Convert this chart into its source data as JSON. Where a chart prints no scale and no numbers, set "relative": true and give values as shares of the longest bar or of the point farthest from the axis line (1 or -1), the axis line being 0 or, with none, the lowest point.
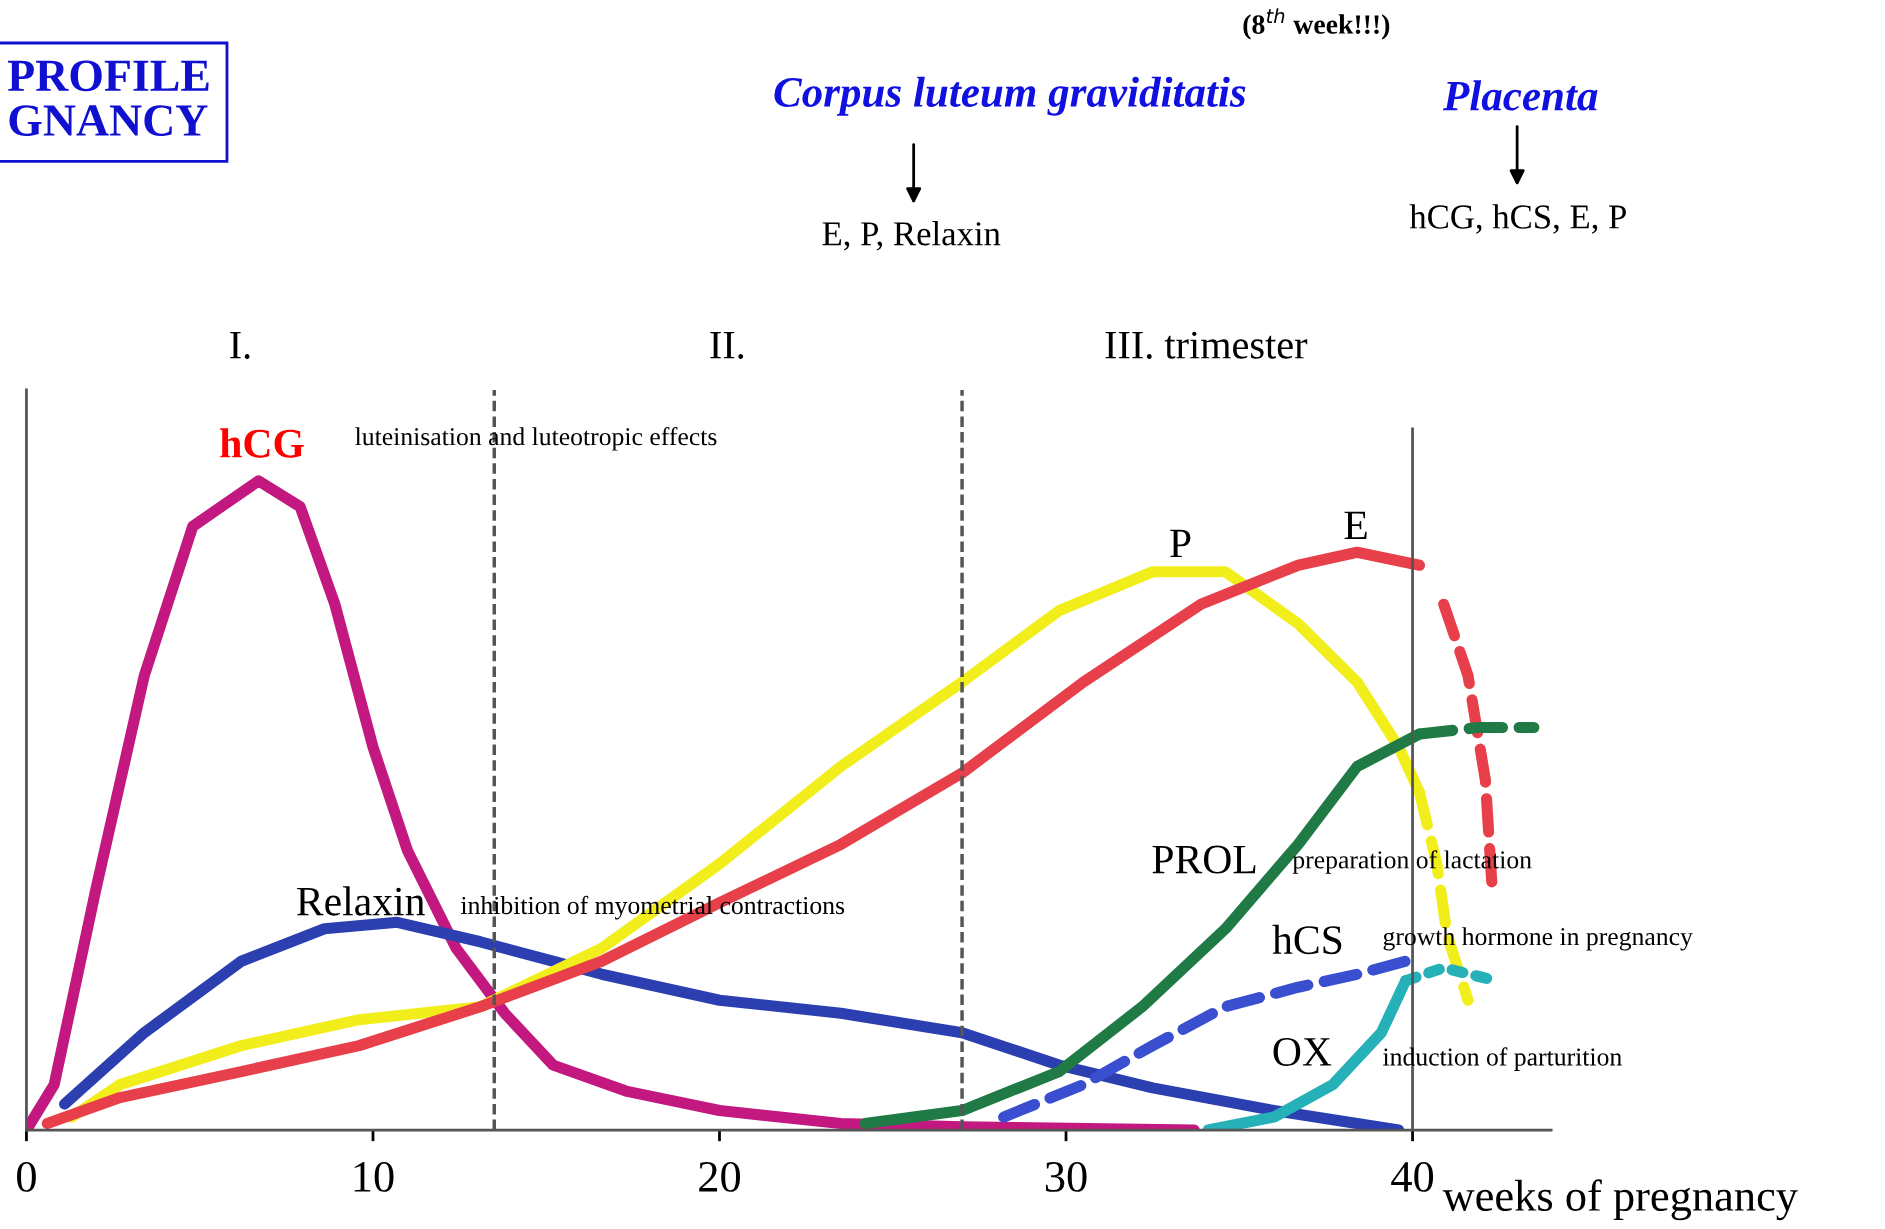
{
  "chart_data": {
    "type": "line",
    "title": "PROFILE\nGNANCY",
    "xlabel": "weeks of pregnancy",
    "relative": true,
    "xlim": [
      0,
      44
    ],
    "xticks": [
      0,
      10,
      20,
      30,
      40
    ],
    "tick_labels": "x",
    "grid": false,
    "legend": false,
    "series": [
      {
        "name": "hCG",
        "color": "#c2187f",
        "line_style": "solid",
        "x": [
          0,
          0.8,
          2.0,
          3.4,
          4.8,
          6.7,
          7.9,
          8.9,
          10.0,
          11.0,
          12.4,
          13.8,
          15.2,
          17.3,
          20,
          23.5,
          27,
          33.7
        ],
        "values": [
          0,
          0.07,
          0.37,
          0.7,
          0.93,
          1.0,
          0.96,
          0.81,
          0.59,
          0.43,
          0.28,
          0.18,
          0.1,
          0.06,
          0.03,
          0.01,
          0.005,
          0
        ]
      },
      {
        "name": "Relaxin",
        "color": "#2b3fb0",
        "line_style": "solid",
        "x": [
          1.1,
          3.4,
          6.2,
          8.6,
          10.7,
          13.1,
          16.6,
          20,
          23.5,
          27,
          29.8,
          32.5,
          36,
          39.6
        ],
        "values": [
          0.04,
          0.15,
          0.26,
          0.31,
          0.32,
          0.29,
          0.24,
          0.2,
          0.18,
          0.15,
          0.1,
          0.065,
          0.03,
          0
        ]
      },
      {
        "name": "P",
        "color": "#f2ee1c",
        "line_style": "solid",
        "x": [
          1.3,
          2.7,
          6.2,
          9.6,
          13.1,
          16.6,
          20,
          23.5,
          27,
          29.8,
          32.5,
          34.6,
          36.7,
          38.4,
          39.6,
          40.2
        ],
        "values": [
          0.02,
          0.07,
          0.13,
          0.17,
          0.19,
          0.28,
          0.41,
          0.56,
          0.69,
          0.8,
          0.86,
          0.86,
          0.78,
          0.69,
          0.59,
          0.52
        ]
      },
      {
        "color": "#f2ee1c",
        "line_style": "dashed",
        "x": [
          40.2,
          40.7,
          41.0,
          41.6
        ],
        "values": [
          0.52,
          0.41,
          0.3,
          0.2
        ]
      },
      {
        "name": "E",
        "color": "#e8404a",
        "line_style": "solid",
        "x": [
          0.6,
          2.7,
          6.2,
          9.6,
          13.1,
          16.6,
          20,
          23.5,
          27,
          30.5,
          33.9,
          36.7,
          38.4,
          40.2
        ],
        "values": [
          0.01,
          0.05,
          0.09,
          0.13,
          0.19,
          0.26,
          0.35,
          0.44,
          0.55,
          0.69,
          0.81,
          0.87,
          0.89,
          0.87
        ]
      },
      {
        "color": "#e8404a",
        "line_style": "dashed",
        "x": [
          40.9,
          41.6,
          42.1,
          42.3
        ],
        "values": [
          0.81,
          0.7,
          0.54,
          0.37
        ]
      },
      {
        "name": "PROL",
        "color": "#1f7a45",
        "line_style": "solid",
        "x": [
          24.2,
          27,
          29.8,
          32.2,
          34.6,
          36.7,
          38.4,
          40.2
        ],
        "values": [
          0.01,
          0.03,
          0.09,
          0.19,
          0.31,
          0.44,
          0.56,
          0.61
        ]
      },
      {
        "color": "#1f7a45",
        "line_style": "dashed",
        "x": [
          40.2,
          41.9,
          43.5
        ],
        "values": [
          0.61,
          0.62,
          0.62
        ]
      },
      {
        "name": "hCS",
        "color": "#3a4fd0",
        "line_style": "dashed",
        "x": [
          28.2,
          30.5,
          32.5,
          34.6,
          36.7,
          38.4,
          39.8
        ],
        "values": [
          0.02,
          0.07,
          0.13,
          0.19,
          0.22,
          0.24,
          0.26
        ]
      },
      {
        "name": "OX",
        "color": "#26b0b8",
        "line_style": "solid",
        "x": [
          34.1,
          36,
          37.7,
          39.1,
          39.8
        ],
        "values": [
          0,
          0.02,
          0.07,
          0.15,
          0.23
        ]
      },
      {
        "color": "#26b0b8",
        "line_style": "dotted",
        "x": [
          39.8,
          40.9,
          42.4
        ],
        "values": [
          0.23,
          0.25,
          0.23
        ]
      }
    ],
    "ref_lines": [
      {
        "axis": "x",
        "value": 13.5,
        "color": "#555555",
        "line_style": "dashed"
      },
      {
        "axis": "x",
        "value": 27,
        "color": "#555555",
        "line_style": "dashed"
      },
      {
        "axis": "x",
        "value": 40,
        "color": "#555555",
        "line_style": "solid"
      }
    ],
    "annotations": [
      "(8$^{th}$ week!!!)",
      "Corpus luteum graviditatis",
      "E, P, Relaxin",
      "Placenta",
      "hCG, hCS, E, P",
      "I.",
      "II.",
      "III. trimester",
      "luteinisation and luteotropic effects",
      "inhibition of myometrial contractions",
      "preparation of lactation",
      "growth hormone in pregnancy",
      "induction of parturition"
    ]
  }
}
